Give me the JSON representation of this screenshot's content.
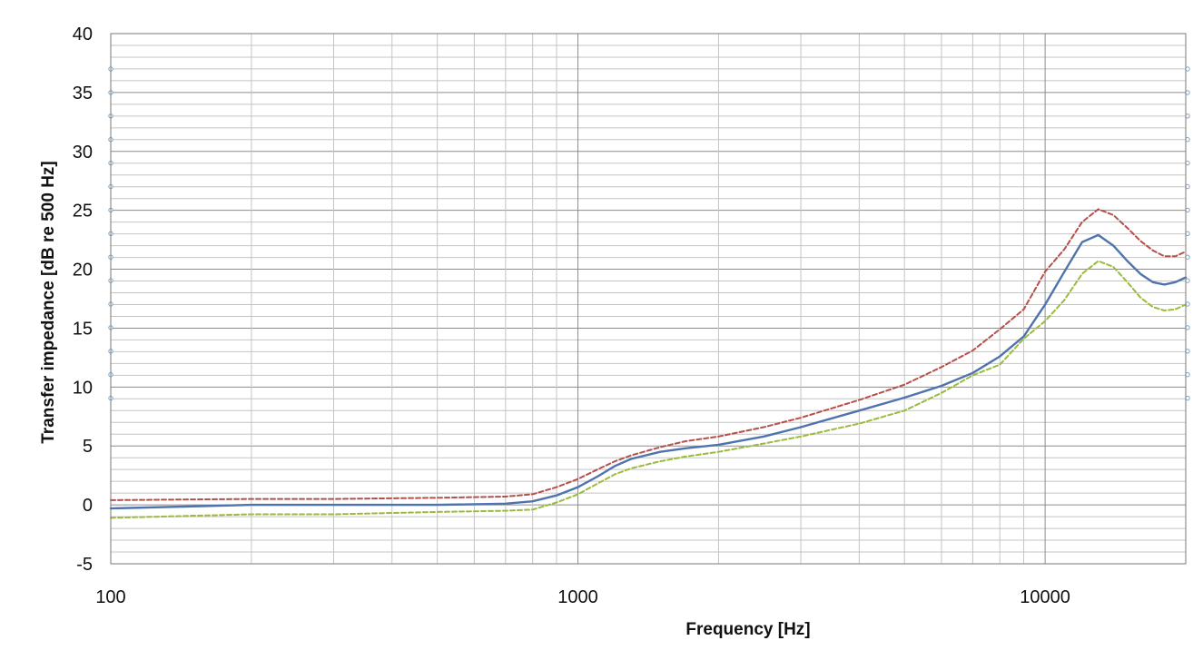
{
  "chart_data": {
    "type": "line",
    "xlabel": "Frequency [Hz]",
    "ylabel": "Transfer impedance [dB re 500 Hz]",
    "x_scale": "log",
    "xlim": [
      100,
      20000
    ],
    "ylim": [
      -5,
      40
    ],
    "x_ticks": [
      100,
      1000,
      10000
    ],
    "x_tick_labels": [
      "100",
      "1000",
      "10000"
    ],
    "y_ticks": [
      -5,
      0,
      5,
      10,
      15,
      20,
      25,
      30,
      35,
      40
    ],
    "y_tick_labels": [
      "-5",
      "0",
      "5",
      "10",
      "15",
      "20",
      "25",
      "30",
      "35",
      "40"
    ],
    "grid": true,
    "legend": "none",
    "series": [
      {
        "color": "#4f73ad",
        "dash": "solid",
        "points": [
          [
            100,
            -0.3
          ],
          [
            200,
            0.0
          ],
          [
            300,
            0.0
          ],
          [
            500,
            0.0
          ],
          [
            700,
            0.1
          ],
          [
            800,
            0.3
          ],
          [
            900,
            0.8
          ],
          [
            1000,
            1.5
          ],
          [
            1100,
            2.4
          ],
          [
            1200,
            3.3
          ],
          [
            1300,
            3.9
          ],
          [
            1500,
            4.5
          ],
          [
            1700,
            4.8
          ],
          [
            2000,
            5.1
          ],
          [
            2500,
            5.8
          ],
          [
            3000,
            6.6
          ],
          [
            4000,
            8.0
          ],
          [
            5000,
            9.1
          ],
          [
            6000,
            10.1
          ],
          [
            7000,
            11.2
          ],
          [
            8000,
            12.6
          ],
          [
            9000,
            14.3
          ],
          [
            10000,
            17.0
          ],
          [
            11000,
            19.8
          ],
          [
            12000,
            22.3
          ],
          [
            13000,
            22.9
          ],
          [
            14000,
            22.0
          ],
          [
            15000,
            20.7
          ],
          [
            16000,
            19.6
          ],
          [
            17000,
            18.9
          ],
          [
            18000,
            18.7
          ],
          [
            19000,
            18.9
          ],
          [
            20000,
            19.3
          ]
        ]
      },
      {
        "color": "#b5504a",
        "dash": "dashed",
        "points": [
          [
            100,
            0.4
          ],
          [
            200,
            0.5
          ],
          [
            300,
            0.5
          ],
          [
            500,
            0.6
          ],
          [
            700,
            0.7
          ],
          [
            800,
            0.9
          ],
          [
            900,
            1.5
          ],
          [
            1000,
            2.2
          ],
          [
            1100,
            3.0
          ],
          [
            1200,
            3.7
          ],
          [
            1300,
            4.2
          ],
          [
            1500,
            4.9
          ],
          [
            1700,
            5.4
          ],
          [
            2000,
            5.8
          ],
          [
            2500,
            6.6
          ],
          [
            3000,
            7.4
          ],
          [
            4000,
            8.9
          ],
          [
            5000,
            10.2
          ],
          [
            6000,
            11.7
          ],
          [
            7000,
            13.1
          ],
          [
            8000,
            14.9
          ],
          [
            9000,
            16.6
          ],
          [
            10000,
            19.8
          ],
          [
            11000,
            21.7
          ],
          [
            12000,
            24.0
          ],
          [
            13000,
            25.1
          ],
          [
            14000,
            24.6
          ],
          [
            15000,
            23.5
          ],
          [
            16000,
            22.4
          ],
          [
            17000,
            21.6
          ],
          [
            18000,
            21.1
          ],
          [
            19000,
            21.1
          ],
          [
            20000,
            21.5
          ]
        ]
      },
      {
        "color": "#9bbb3c",
        "dash": "dashed",
        "points": [
          [
            100,
            -1.1
          ],
          [
            200,
            -0.8
          ],
          [
            300,
            -0.8
          ],
          [
            500,
            -0.6
          ],
          [
            700,
            -0.5
          ],
          [
            800,
            -0.4
          ],
          [
            900,
            0.2
          ],
          [
            1000,
            0.9
          ],
          [
            1100,
            1.8
          ],
          [
            1200,
            2.6
          ],
          [
            1300,
            3.1
          ],
          [
            1500,
            3.7
          ],
          [
            1700,
            4.1
          ],
          [
            2000,
            4.5
          ],
          [
            2500,
            5.2
          ],
          [
            3000,
            5.8
          ],
          [
            4000,
            6.9
          ],
          [
            5000,
            8.0
          ],
          [
            6000,
            9.5
          ],
          [
            7000,
            11.0
          ],
          [
            8000,
            11.9
          ],
          [
            9000,
            14.1
          ],
          [
            10000,
            15.6
          ],
          [
            11000,
            17.4
          ],
          [
            12000,
            19.6
          ],
          [
            13000,
            20.7
          ],
          [
            14000,
            20.2
          ],
          [
            15000,
            18.9
          ],
          [
            16000,
            17.6
          ],
          [
            17000,
            16.8
          ],
          [
            18000,
            16.5
          ],
          [
            19000,
            16.6
          ],
          [
            20000,
            17.0
          ]
        ]
      }
    ]
  }
}
